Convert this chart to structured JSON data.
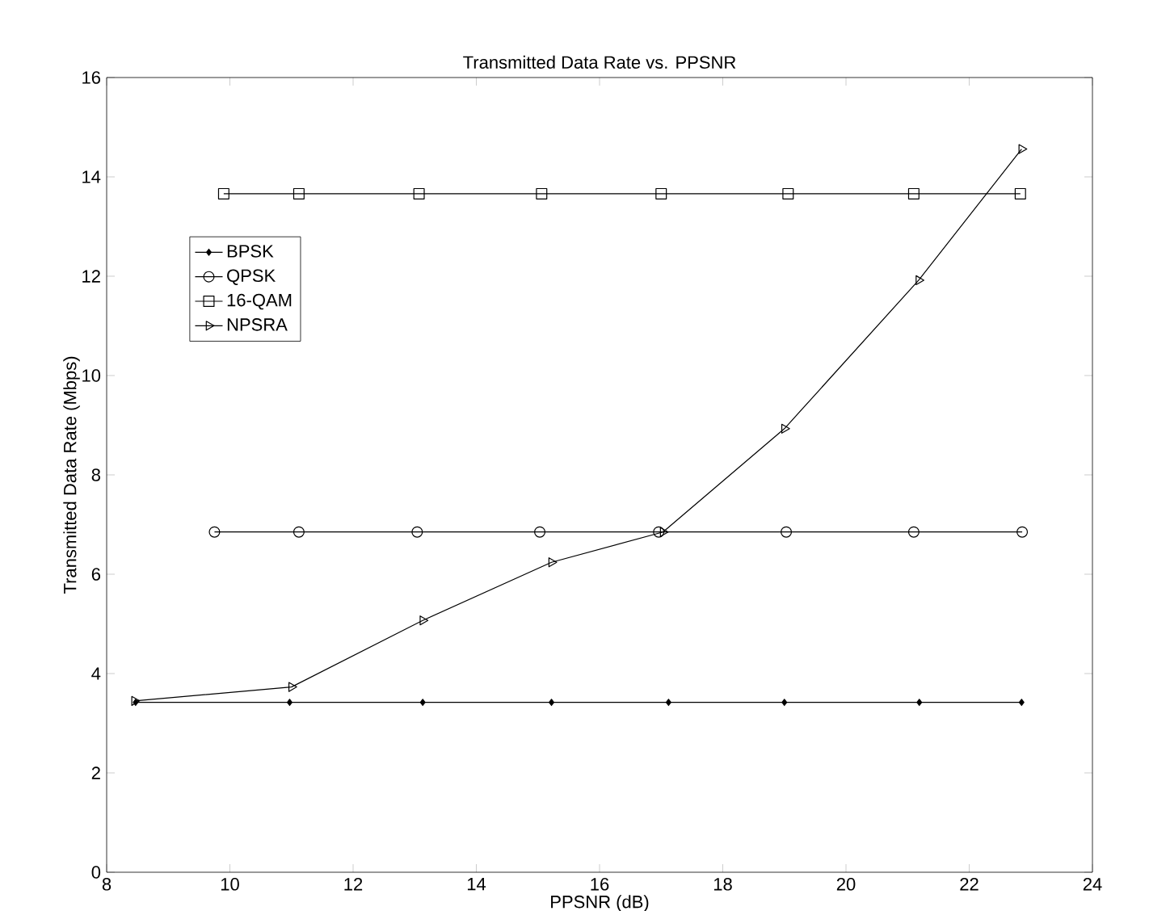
{
  "chart_data": {
    "type": "line",
    "title": "Transmitted Data Rate vs. PPSNR",
    "xlabel": "PPSNR (dB)",
    "ylabel": "Transmitted Data Rate (Mbps)",
    "xlim": [
      8,
      24
    ],
    "ylim": [
      0,
      16
    ],
    "xticks": [
      8,
      10,
      12,
      14,
      16,
      18,
      20,
      22,
      24
    ],
    "yticks": [
      0,
      2,
      4,
      6,
      8,
      10,
      12,
      14,
      16
    ],
    "grid": false,
    "legend": "top left",
    "line_style": "solid",
    "series": [
      {
        "name": "BPSK",
        "color": "#000000",
        "marker": "diamond",
        "x": [
          8.47,
          10.97,
          13.13,
          15.22,
          17.12,
          19.0,
          21.19,
          22.85
        ],
        "values": [
          3.42,
          3.42,
          3.42,
          3.42,
          3.42,
          3.42,
          3.42,
          3.42
        ]
      },
      {
        "name": "QPSK",
        "color": "#000000",
        "marker": "circle",
        "x": [
          9.75,
          11.12,
          13.04,
          15.03,
          16.96,
          19.03,
          21.1,
          22.86
        ],
        "values": [
          6.85,
          6.85,
          6.85,
          6.85,
          6.85,
          6.85,
          6.85,
          6.85
        ]
      },
      {
        "name": "16-QAM",
        "color": "#000000",
        "marker": "square",
        "x": [
          9.9,
          11.12,
          13.07,
          15.06,
          17.0,
          19.06,
          21.1,
          22.83
        ],
        "values": [
          13.66,
          13.66,
          13.66,
          13.66,
          13.66,
          13.66,
          13.66,
          13.66
        ]
      },
      {
        "name": "NPSRA",
        "color": "#000000",
        "marker": "triangle",
        "x": [
          8.45,
          11.0,
          13.13,
          15.22,
          17.03,
          19.0,
          21.18,
          22.85
        ],
        "values": [
          3.45,
          3.73,
          5.07,
          6.24,
          6.85,
          8.93,
          11.92,
          14.56
        ]
      }
    ]
  }
}
